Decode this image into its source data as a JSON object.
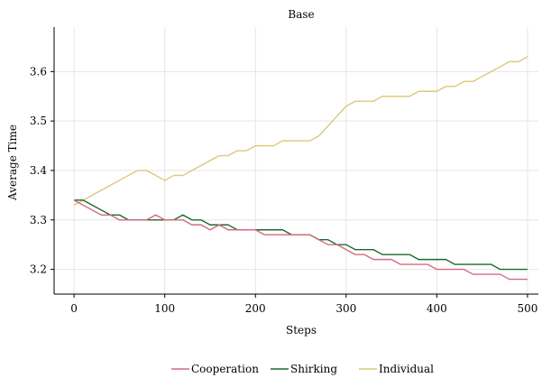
{
  "chart_data": {
    "type": "line",
    "title": "Base",
    "xlabel": "Steps",
    "ylabel": "Average Time",
    "xlim": [
      -22,
      512
    ],
    "ylim": [
      3.15,
      3.69
    ],
    "xticks": [
      0,
      100,
      200,
      300,
      400,
      500
    ],
    "yticks": [
      3.2,
      3.3,
      3.4,
      3.5,
      3.6
    ],
    "ytick_labels": [
      "3.2",
      "3.3",
      "3.4",
      "3.5",
      "3.6"
    ],
    "grid": true,
    "legend_position": "bottom-center",
    "x": [
      0,
      10,
      20,
      30,
      40,
      50,
      60,
      70,
      80,
      90,
      100,
      110,
      120,
      130,
      140,
      150,
      160,
      170,
      180,
      190,
      200,
      210,
      220,
      230,
      240,
      250,
      260,
      270,
      280,
      290,
      300,
      310,
      320,
      330,
      340,
      350,
      360,
      370,
      380,
      390,
      400,
      410,
      420,
      430,
      440,
      450,
      460,
      470,
      480,
      490,
      500
    ],
    "series": [
      {
        "name": "Cooperation",
        "color": "#d46a7e",
        "values": [
          3.34,
          3.33,
          3.32,
          3.31,
          3.31,
          3.3,
          3.3,
          3.3,
          3.3,
          3.31,
          3.3,
          3.3,
          3.3,
          3.29,
          3.29,
          3.28,
          3.29,
          3.28,
          3.28,
          3.28,
          3.28,
          3.27,
          3.27,
          3.27,
          3.27,
          3.27,
          3.27,
          3.26,
          3.25,
          3.25,
          3.24,
          3.23,
          3.23,
          3.22,
          3.22,
          3.22,
          3.21,
          3.21,
          3.21,
          3.21,
          3.2,
          3.2,
          3.2,
          3.2,
          3.19,
          3.19,
          3.19,
          3.19,
          3.18,
          3.18,
          3.18
        ]
      },
      {
        "name": "Shirking",
        "color": "#1a6b2e",
        "values": [
          3.34,
          3.34,
          3.33,
          3.32,
          3.31,
          3.31,
          3.3,
          3.3,
          3.3,
          3.3,
          3.3,
          3.3,
          3.31,
          3.3,
          3.3,
          3.29,
          3.29,
          3.29,
          3.28,
          3.28,
          3.28,
          3.28,
          3.28,
          3.28,
          3.27,
          3.27,
          3.27,
          3.26,
          3.26,
          3.25,
          3.25,
          3.24,
          3.24,
          3.24,
          3.23,
          3.23,
          3.23,
          3.23,
          3.22,
          3.22,
          3.22,
          3.22,
          3.21,
          3.21,
          3.21,
          3.21,
          3.21,
          3.2,
          3.2,
          3.2,
          3.2
        ]
      },
      {
        "name": "Individual",
        "color": "#dcc97a",
        "values": [
          3.33,
          3.34,
          3.35,
          3.36,
          3.37,
          3.38,
          3.39,
          3.4,
          3.4,
          3.39,
          3.38,
          3.39,
          3.39,
          3.4,
          3.41,
          3.42,
          3.43,
          3.43,
          3.44,
          3.44,
          3.45,
          3.45,
          3.45,
          3.46,
          3.46,
          3.46,
          3.46,
          3.47,
          3.49,
          3.51,
          3.53,
          3.54,
          3.54,
          3.54,
          3.55,
          3.55,
          3.55,
          3.55,
          3.56,
          3.56,
          3.56,
          3.57,
          3.57,
          3.58,
          3.58,
          3.59,
          3.6,
          3.61,
          3.62,
          3.62,
          3.63
        ]
      }
    ]
  }
}
